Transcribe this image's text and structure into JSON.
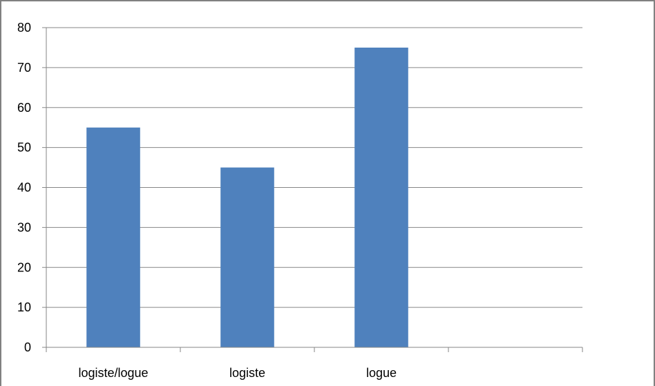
{
  "chart_data": {
    "type": "bar",
    "categories": [
      "logiste/logue",
      "logiste",
      "logue",
      ""
    ],
    "values": [
      55,
      45,
      75,
      null
    ],
    "title": "",
    "xlabel": "",
    "ylabel": "",
    "ylim": [
      0,
      80
    ],
    "yticks": [
      "0",
      "10",
      "20",
      "30",
      "40",
      "50",
      "60",
      "70",
      "80"
    ],
    "grid": true,
    "legend": "none",
    "bar_color": "#4F81BD",
    "gridline_color": "#868686"
  }
}
